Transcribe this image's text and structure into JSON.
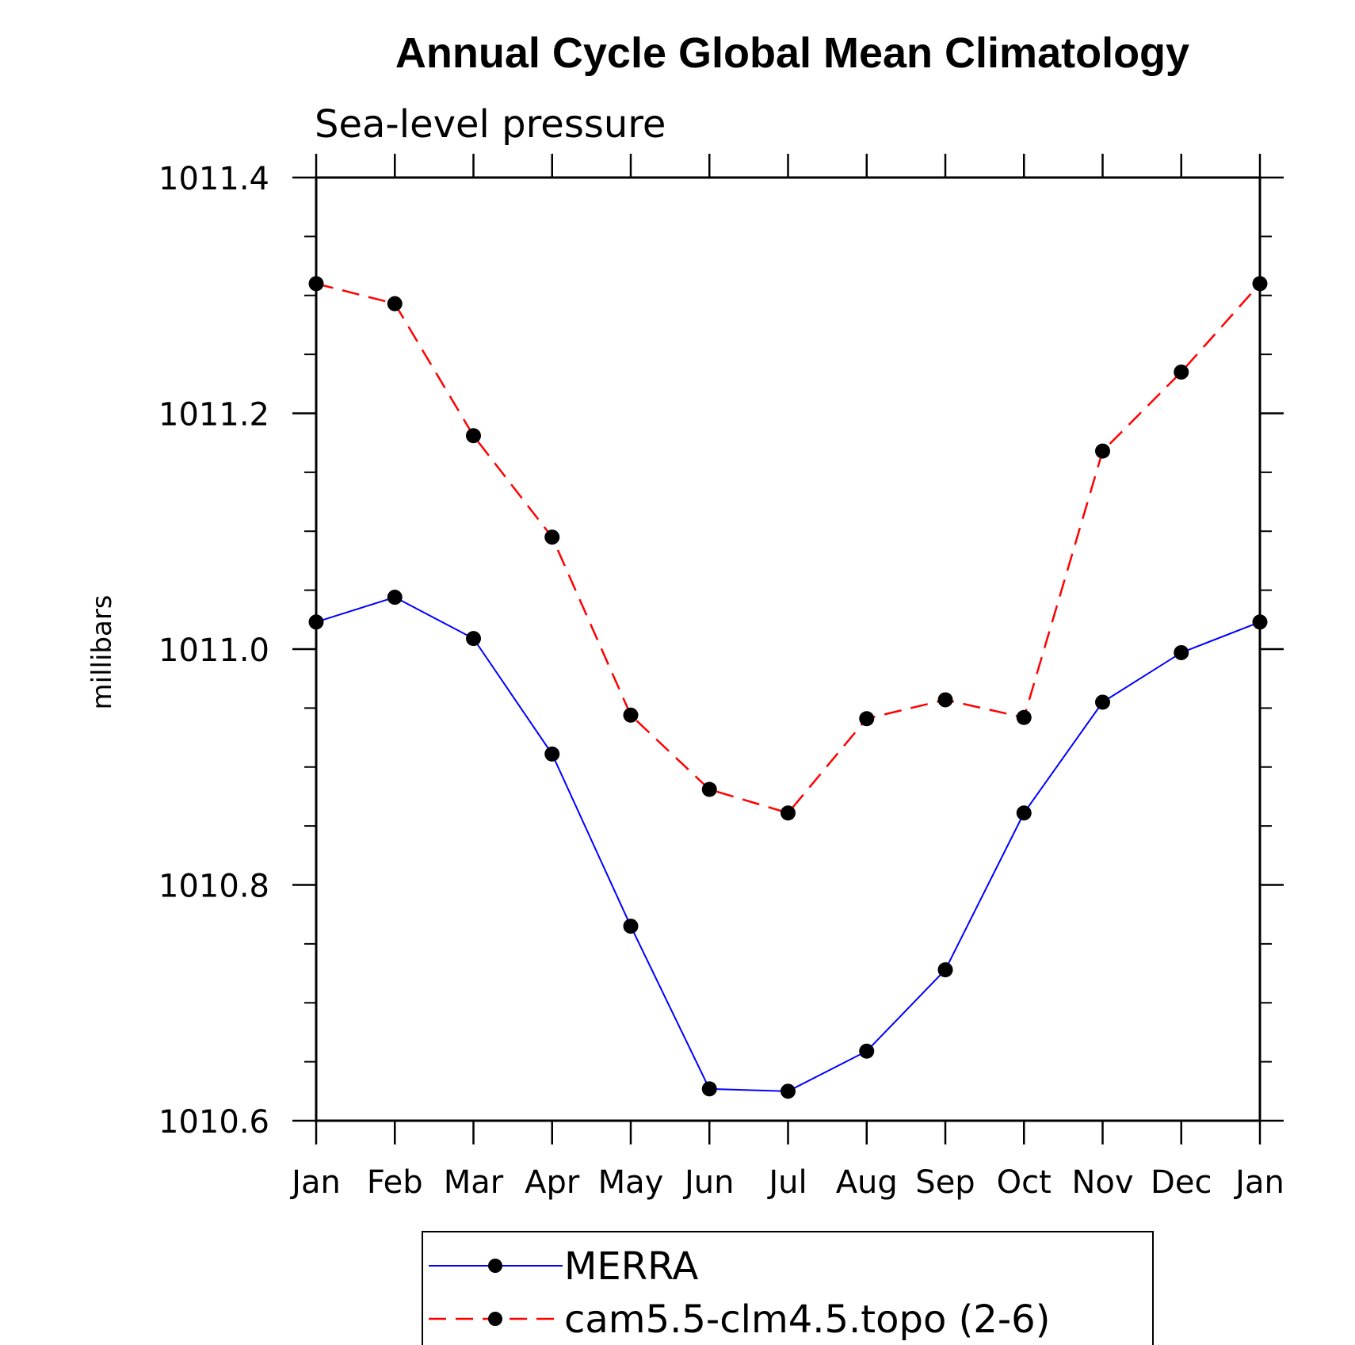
{
  "chart_data": {
    "type": "line",
    "title": "Annual Cycle Global Mean Climatology",
    "subtitle": "Sea-level pressure",
    "ylabel": "millibars",
    "xlabel": "",
    "categories": [
      "Jan",
      "Feb",
      "Mar",
      "Apr",
      "May",
      "Jun",
      "Jul",
      "Aug",
      "Sep",
      "Oct",
      "Nov",
      "Dec",
      "Jan"
    ],
    "ylim": [
      1010.6,
      1011.4
    ],
    "yticks": [
      1010.6,
      1010.8,
      1011.0,
      1011.2,
      1011.4
    ],
    "ytick_labels": [
      "1010.6",
      "1010.8",
      "1011.0",
      "1011.2",
      "1011.4"
    ],
    "series": [
      {
        "name": "MERRA",
        "color": "#0000ff",
        "dash": "solid",
        "values": [
          1011.023,
          1011.044,
          1011.009,
          1010.911,
          1010.765,
          1010.627,
          1010.625,
          1010.659,
          1010.728,
          1010.861,
          1010.955,
          1010.997,
          1011.023
        ]
      },
      {
        "name": "cam5.5-clm4.5.topo (2-6)",
        "color": "#ff0000",
        "dash": "dashed",
        "values": [
          1011.31,
          1011.293,
          1011.181,
          1011.095,
          1010.944,
          1010.881,
          1010.861,
          1010.941,
          1010.957,
          1010.942,
          1011.168,
          1011.235,
          1011.31
        ]
      }
    ],
    "legend_position": "bottom"
  }
}
